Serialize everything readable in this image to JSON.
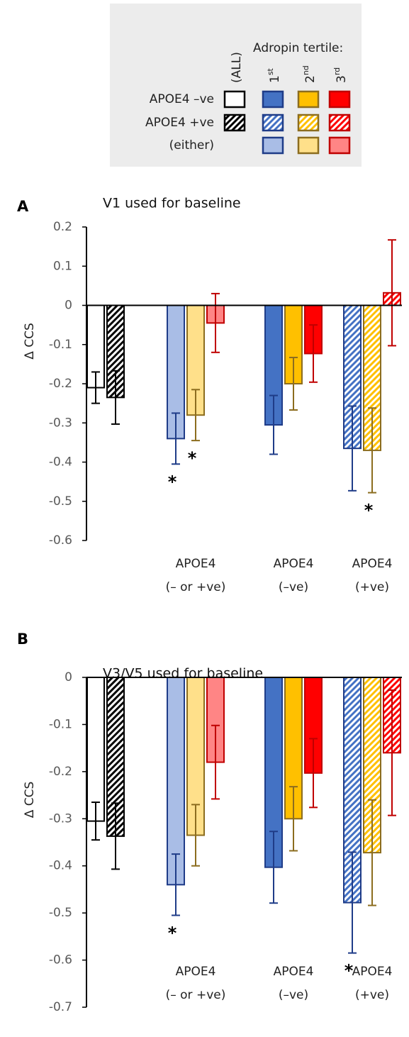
{
  "legend": {
    "title": "Adropin tertile:",
    "columns": [
      [
        "(ALL)",
        null
      ],
      [
        "1",
        "st"
      ],
      [
        "2",
        "nd"
      ],
      [
        "3",
        "rd"
      ]
    ],
    "rows": [
      "APOE4 –ve",
      "APOE4 +ve",
      "(either)"
    ],
    "cells": [
      [
        {
          "series": 0,
          "style": "outline"
        },
        {
          "series": 2,
          "style": "solid"
        },
        {
          "series": 3,
          "style": "solid"
        },
        {
          "series": 4,
          "style": "solid"
        }
      ],
      [
        {
          "series": 1,
          "style": "hatch"
        },
        {
          "series": 2,
          "style": "hatch"
        },
        {
          "series": 3,
          "style": "hatch"
        },
        {
          "series": 4,
          "style": "hatch"
        }
      ],
      [
        null,
        {
          "series": 2,
          "style": "light"
        },
        {
          "series": 3,
          "style": "light"
        },
        {
          "series": 4,
          "style": "light"
        }
      ]
    ]
  },
  "chart_data": [
    {
      "type": "bar",
      "panel": "A",
      "title": "V1 used for baseline",
      "y_label": "Δ CCS",
      "ylim": [
        -0.6,
        0.2
      ],
      "yticks": [
        0.2,
        0.1,
        0,
        -0.1,
        -0.2,
        -0.3,
        -0.4,
        -0.5,
        -0.6
      ],
      "categories": [
        null,
        [
          "APOE4",
          "(– or +ve)"
        ],
        [
          "APOE4",
          "(–ve)"
        ],
        [
          "APOE4",
          "(+ve)"
        ]
      ],
      "series": [
        {
          "color": "#000000",
          "light": "#ffffff",
          "edge": "#000000",
          "styles": [
            "outline",
            null,
            null,
            null
          ],
          "values": [
            -0.21,
            null,
            null,
            null
          ],
          "errors": [
            0.04,
            null,
            null,
            null
          ],
          "annotations": [
            null,
            null,
            null,
            null
          ]
        },
        {
          "color": "#000000",
          "light": "#ffffff",
          "edge": "#000000",
          "styles": [
            "hatch",
            null,
            null,
            null
          ],
          "values": [
            -0.235,
            null,
            null,
            null
          ],
          "errors": [
            0.068,
            null,
            null,
            null
          ],
          "annotations": [
            null,
            null,
            null,
            null
          ]
        },
        {
          "color": "#4472c4",
          "light": "#a9bde6",
          "edge": "#1f3c88",
          "styles": [
            null,
            "light",
            "solid",
            "hatch"
          ],
          "values": [
            null,
            -0.34,
            -0.305,
            -0.365
          ],
          "errors": [
            null,
            0.065,
            0.075,
            0.108
          ],
          "annotations": [
            null,
            "*",
            null,
            null
          ]
        },
        {
          "color": "#ffc000",
          "light": "#ffe08a",
          "edge": "#8c6d1f",
          "styles": [
            null,
            "light",
            "solid",
            "hatch"
          ],
          "values": [
            null,
            -0.28,
            -0.2,
            -0.37
          ],
          "errors": [
            null,
            0.065,
            0.067,
            0.108
          ],
          "annotations": [
            null,
            "*",
            null,
            "*"
          ]
        },
        {
          "color": "#ff0000",
          "light": "#ff8585",
          "edge": "#c00000",
          "styles": [
            null,
            "light",
            "solid",
            "hatch"
          ],
          "values": [
            null,
            -0.045,
            -0.123,
            0.032
          ],
          "errors": [
            null,
            0.075,
            0.073,
            0.135
          ],
          "annotations": [
            null,
            null,
            null,
            null
          ]
        }
      ]
    },
    {
      "type": "bar",
      "panel": "B",
      "title": "V3/V5 used for baseline",
      "y_label": "Δ CCS",
      "ylim": [
        -0.7,
        0
      ],
      "yticks": [
        0,
        -0.1,
        -0.2,
        -0.3,
        -0.4,
        -0.5,
        -0.6,
        -0.7
      ],
      "categories": [
        null,
        [
          "APOE4",
          "(– or +ve)"
        ],
        [
          "APOE4",
          "(–ve)"
        ],
        [
          "APOE4",
          "(+ve)"
        ]
      ],
      "series": [
        {
          "color": "#000000",
          "light": "#ffffff",
          "edge": "#000000",
          "styles": [
            "outline",
            null,
            null,
            null
          ],
          "values": [
            -0.305,
            null,
            null,
            null
          ],
          "errors": [
            0.04,
            null,
            null,
            null
          ],
          "annotations": [
            null,
            null,
            null,
            null
          ]
        },
        {
          "color": "#000000",
          "light": "#ffffff",
          "edge": "#000000",
          "styles": [
            "hatch",
            null,
            null,
            null
          ],
          "values": [
            -0.337,
            null,
            null,
            null
          ],
          "errors": [
            0.07,
            null,
            null,
            null
          ],
          "annotations": [
            null,
            null,
            null,
            null
          ]
        },
        {
          "color": "#4472c4",
          "light": "#a9bde6",
          "edge": "#1f3c88",
          "styles": [
            null,
            "light",
            "solid",
            "hatch"
          ],
          "values": [
            null,
            -0.44,
            -0.403,
            -0.478
          ],
          "errors": [
            null,
            0.065,
            0.076,
            0.107
          ],
          "annotations": [
            null,
            "*",
            null,
            "*"
          ]
        },
        {
          "color": "#ffc000",
          "light": "#ffe08a",
          "edge": "#8c6d1f",
          "styles": [
            null,
            "light",
            "solid",
            "hatch"
          ],
          "values": [
            null,
            -0.335,
            -0.3,
            -0.372
          ],
          "errors": [
            null,
            0.065,
            0.068,
            0.112
          ],
          "annotations": [
            null,
            null,
            null,
            null
          ]
        },
        {
          "color": "#ff0000",
          "light": "#ff8585",
          "edge": "#c00000",
          "styles": [
            null,
            "light",
            "solid",
            "hatch"
          ],
          "values": [
            null,
            -0.18,
            -0.203,
            -0.16
          ],
          "errors": [
            null,
            0.078,
            0.073,
            0.133
          ],
          "annotations": [
            null,
            null,
            null,
            null
          ]
        }
      ]
    }
  ]
}
